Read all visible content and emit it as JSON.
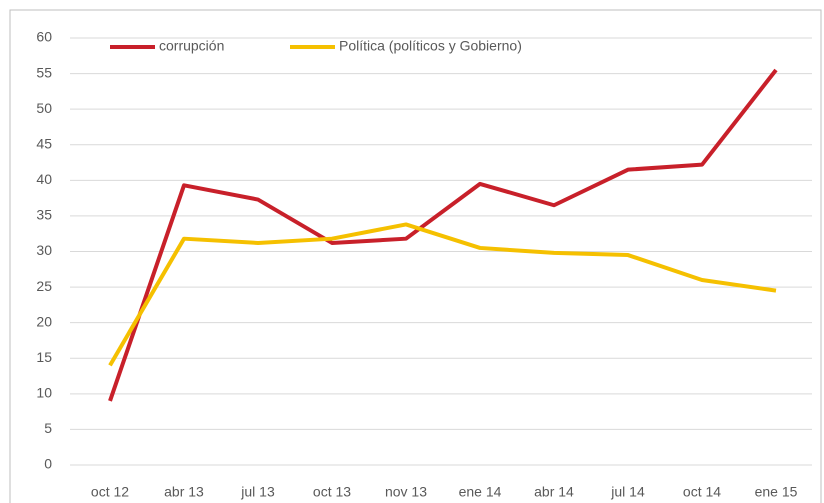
{
  "chart_data": {
    "type": "line",
    "categories": [
      "oct 12",
      "abr 13",
      "jul 13",
      "oct 13",
      "nov 13",
      "ene 14",
      "abr 14",
      "jul 14",
      "oct 14",
      "ene 15"
    ],
    "series": [
      {
        "name": "corrupción",
        "color": "#c8202a",
        "values": [
          9,
          39.3,
          37.3,
          31.2,
          31.8,
          39.5,
          36.5,
          41.5,
          42.2,
          55.5
        ]
      },
      {
        "name": "Política (políticos y Gobierno)",
        "color": "#f5c000",
        "values": [
          14,
          31.8,
          31.2,
          31.8,
          33.8,
          30.5,
          29.8,
          29.5,
          26,
          24.5
        ]
      }
    ],
    "ylim": [
      0,
      60
    ],
    "yticks": [
      0,
      5,
      10,
      15,
      20,
      25,
      30,
      35,
      40,
      45,
      50,
      55,
      60
    ],
    "grid": true,
    "legend": "top"
  }
}
